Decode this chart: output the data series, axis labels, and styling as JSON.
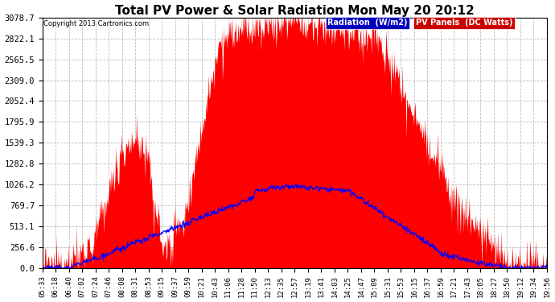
{
  "title": "Total PV Power & Solar Radiation Mon May 20 20:12",
  "copyright": "Copyright 2013 Cartronics.com",
  "yticks": [
    0.0,
    256.6,
    513.1,
    769.7,
    1026.2,
    1282.8,
    1539.3,
    1795.9,
    2052.4,
    2309.0,
    2565.5,
    2822.1,
    3078.7
  ],
  "ymax": 3078.7,
  "ymin": 0.0,
  "bg_color": "#ffffff",
  "plot_bg_color": "#ffffff",
  "grid_color": "#bbbbbb",
  "red_color": "#ff0000",
  "blue_color": "#0000ff",
  "legend_radiation_bg": "#0000bb",
  "legend_pv_bg": "#cc0000",
  "title_fontsize": 11,
  "xtick_fontsize": 6.5,
  "ytick_fontsize": 7.5,
  "x_labels": [
    "05:33",
    "06:18",
    "06:40",
    "07:02",
    "07:24",
    "07:46",
    "08:08",
    "08:31",
    "08:53",
    "09:15",
    "09:37",
    "09:59",
    "10:21",
    "10:43",
    "11:06",
    "11:28",
    "11:50",
    "12:13",
    "12:35",
    "12:57",
    "13:19",
    "13:41",
    "14:03",
    "14:25",
    "14:47",
    "15:09",
    "15:31",
    "15:53",
    "16:15",
    "16:37",
    "16:59",
    "17:21",
    "17:43",
    "18:05",
    "18:27",
    "18:50",
    "19:12",
    "19:34",
    "19:56"
  ],
  "n_points": 800,
  "pv_peak": 3000,
  "rad_peak": 1026
}
